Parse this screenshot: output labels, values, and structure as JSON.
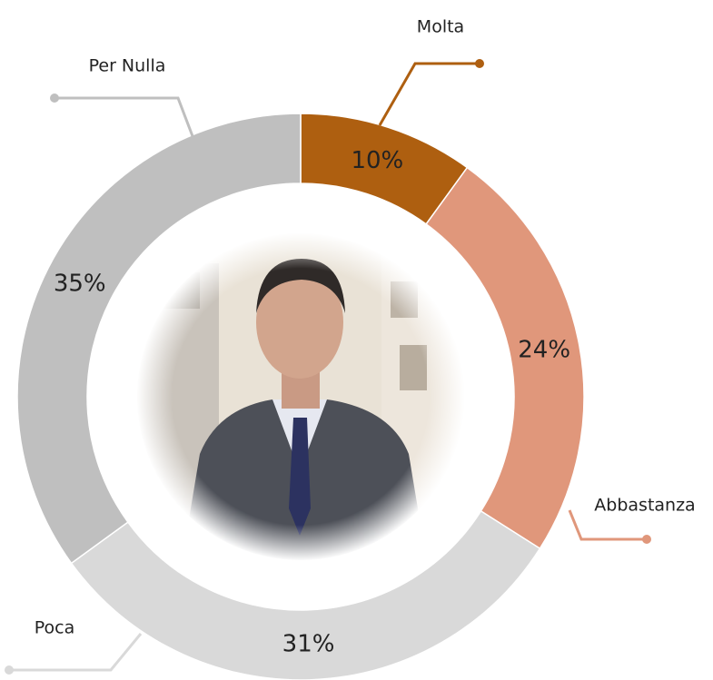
{
  "chart_data": {
    "type": "donut",
    "categories": [
      "Molta",
      "Abbastanza",
      "Poca",
      "Per Nulla"
    ],
    "values": [
      10,
      24,
      31,
      35
    ],
    "value_labels": [
      "10%",
      "24%",
      "31%",
      "35%"
    ],
    "colors": [
      "#ae5f10",
      "#e0977b",
      "#d9d9d9",
      "#bfbfbf"
    ]
  }
}
